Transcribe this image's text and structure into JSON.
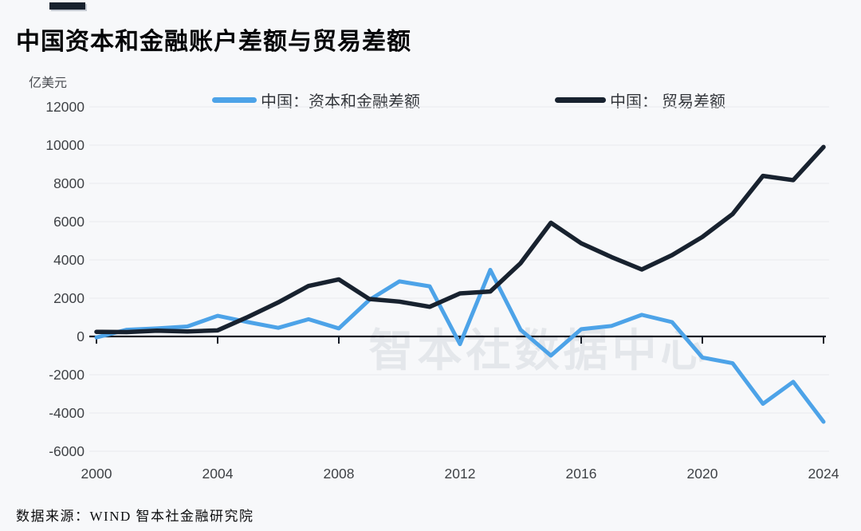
{
  "page": {
    "title": "中国资本和金融账户差额与贸易差额",
    "unit_label": "亿美元",
    "source_note": "数据来源：WIND 智本社金融研究院",
    "background_color": "#f7f8fa"
  },
  "legend": {
    "items": [
      {
        "label": "中国：资本和金融差额",
        "color": "#4da3e8"
      },
      {
        "label": "中国： 贸易差额",
        "color": "#18222f"
      }
    ]
  },
  "colors": {
    "accent_bar": "#18222e",
    "axis": "#141b26",
    "grid_line": "#e8eaee",
    "tick_label": "#3f4246",
    "watermark": "#e4e7eb",
    "series_blue": "#4da3e8",
    "series_navy": "#18222f"
  },
  "chart_data": {
    "type": "line",
    "title": "中国资本和金融账户差额与贸易差额",
    "ylabel": "亿美元",
    "xlabel": "",
    "grid": true,
    "legend_position": "top",
    "watermark": "智本社数据中心",
    "ylim": [
      -6000,
      12000
    ],
    "ytick_step": 2000,
    "xticks": [
      2000,
      2004,
      2008,
      2012,
      2016,
      2020,
      2024
    ],
    "x": [
      2000,
      2001,
      2002,
      2003,
      2004,
      2005,
      2006,
      2007,
      2008,
      2009,
      2010,
      2011,
      2012,
      2013,
      2014,
      2015,
      2016,
      2017,
      2018,
      2019,
      2020,
      2021,
      2022,
      2023,
      2024
    ],
    "series": [
      {
        "name": "中国：资本和金融差额",
        "color": "#4da3e8",
        "values": [
          -50,
          350,
          420,
          520,
          1080,
          750,
          450,
          900,
          420,
          1900,
          2880,
          2620,
          -400,
          3480,
          350,
          -1000,
          380,
          550,
          1130,
          750,
          -1100,
          -1400,
          -3520,
          -2370,
          -4460
        ]
      },
      {
        "name": "中国： 贸易差额",
        "color": "#18222f",
        "values": [
          240,
          230,
          300,
          260,
          320,
          1020,
          1780,
          2640,
          2980,
          1960,
          1820,
          1550,
          2250,
          2350,
          3830,
          5940,
          4870,
          4150,
          3500,
          4250,
          5200,
          6400,
          8390,
          8170,
          9900
        ]
      }
    ]
  }
}
